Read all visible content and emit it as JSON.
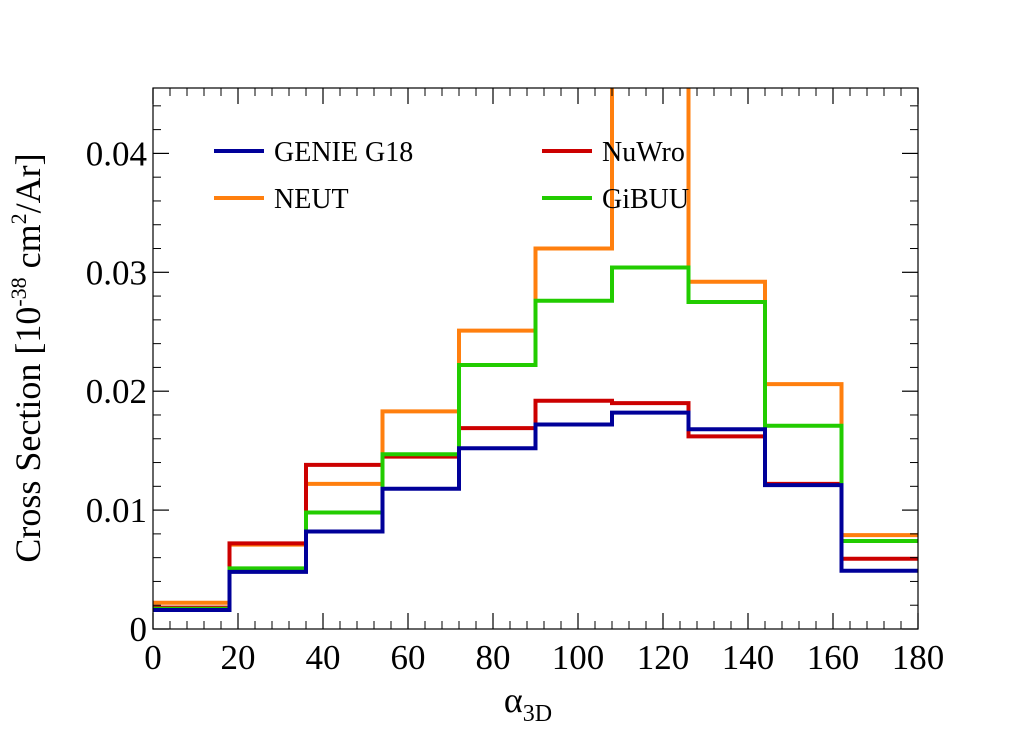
{
  "chart_data": {
    "type": "line",
    "style": "step-histogram",
    "bin_edges": [
      0,
      18,
      36,
      54,
      72,
      90,
      108,
      126,
      144,
      162,
      180
    ],
    "xlabel": "α",
    "xlabel_sub": "3D",
    "ylabel_prefix": "Cross Section [10",
    "ylabel_exp1": "-38",
    "ylabel_mid": " cm",
    "ylabel_exp2": "2",
    "ylabel_suffix": "/Ar]",
    "xlim": [
      0,
      180
    ],
    "ylim": [
      0,
      0.0455
    ],
    "xticks": [
      0,
      20,
      40,
      60,
      80,
      100,
      120,
      140,
      160,
      180
    ],
    "xtick_labels": [
      "0",
      "20",
      "40",
      "60",
      "80",
      "100",
      "120",
      "140",
      "160",
      "180"
    ],
    "yticks": [
      0,
      0.01,
      0.02,
      0.03,
      0.04
    ],
    "ytick_labels": [
      "0",
      "0.01",
      "0.02",
      "0.03",
      "0.04"
    ],
    "grid": false,
    "legend_position": "top",
    "series": [
      {
        "name": "NEUT",
        "color": "#ff7f0e",
        "values": [
          0.0022,
          0.0071,
          0.0122,
          0.0183,
          0.0251,
          0.032,
          0.0495,
          0.0292,
          0.0206,
          0.0079
        ]
      },
      {
        "name": "NuWro",
        "color": "#cc0000",
        "values": [
          0.0018,
          0.0072,
          0.0138,
          0.0145,
          0.0169,
          0.0192,
          0.019,
          0.0162,
          0.0122,
          0.0059
        ]
      },
      {
        "name": "GiBUU",
        "color": "#22cc00",
        "values": [
          0.0017,
          0.0051,
          0.0098,
          0.0147,
          0.0222,
          0.0276,
          0.0304,
          0.0275,
          0.0171,
          0.0074
        ]
      },
      {
        "name": "GENIE G18",
        "color": "#000099",
        "values": [
          0.0016,
          0.0048,
          0.0082,
          0.0118,
          0.0152,
          0.0172,
          0.0182,
          0.0168,
          0.0121,
          0.0049
        ]
      }
    ],
    "legend": [
      {
        "name": "GENIE G18",
        "color": "#000099"
      },
      {
        "name": "NuWro",
        "color": "#cc0000"
      },
      {
        "name": "NEUT",
        "color": "#ff7f0e"
      },
      {
        "name": "GiBUU",
        "color": "#22cc00"
      }
    ]
  }
}
